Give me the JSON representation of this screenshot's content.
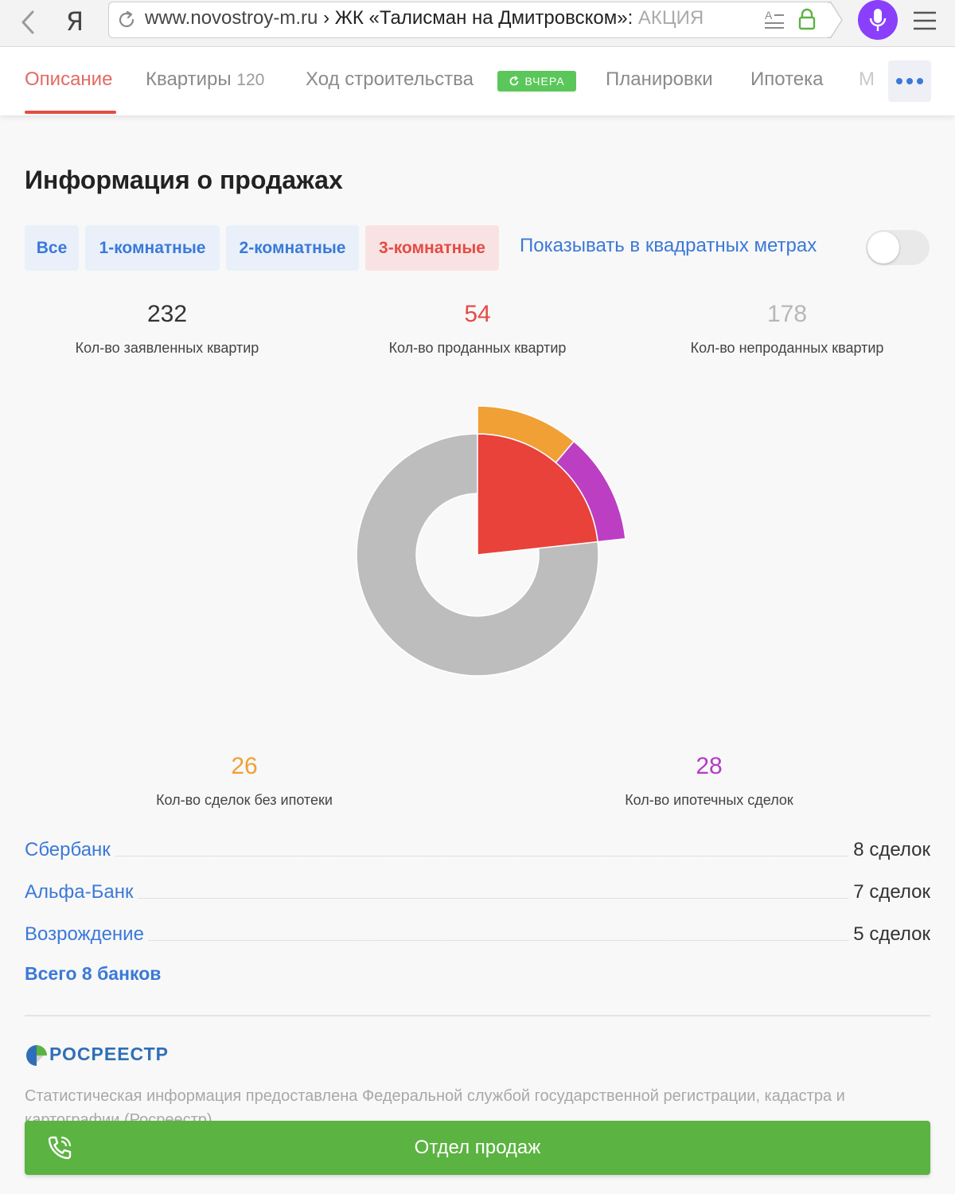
{
  "browser": {
    "url_host": "www.novostroy-m.ru",
    "url_sep": "›",
    "url_title": "ЖК «Талисман на Дмитровском»: ",
    "url_faded": "АКЦИЯ",
    "ya_label": "Я"
  },
  "tabs": {
    "description": "Описание",
    "apartments": "Квартиры",
    "apartments_count": "120",
    "construction": "Ход строительства",
    "construction_badge": "ВЧЕРА",
    "layouts": "Планировки",
    "mortgage": "Ипотека",
    "more_cut": "М"
  },
  "sales": {
    "title": "Информация о продажах",
    "filters": [
      "Все",
      "1-комнатные",
      "2-комнатные",
      "3-комнатные"
    ],
    "sqm_label": "Показывать в квадратных метрах",
    "declared_value": "232",
    "declared_label": "Кол-во заявленных квартир",
    "sold_value": "54",
    "sold_label": "Кол-во проданных квартир",
    "unsold_value": "178",
    "unsold_label": "Кол-во непроданных квартир",
    "cash_value": "26",
    "cash_label": "Кол-во сделок без ипотеки",
    "mortgage_value": "28",
    "mortgage_label": "Кол-во ипотечных сделок"
  },
  "chart_data": {
    "type": "pie",
    "inner": [
      {
        "name": "sold",
        "value": 54,
        "color": "#e8423b"
      },
      {
        "name": "unsold",
        "value": 178,
        "color": "#bdbdbd"
      }
    ],
    "outer": [
      {
        "name": "cash",
        "value": 26,
        "color": "#f0a035"
      },
      {
        "name": "mortgage",
        "value": 28,
        "color": "#bc3fc3"
      }
    ]
  },
  "banks": [
    {
      "name": "Сбербанк",
      "deals": "8 сделок"
    },
    {
      "name": "Альфа-Банк",
      "deals": "7 сделок"
    },
    {
      "name": "Возрождение",
      "deals": "5 сделок"
    }
  ],
  "total_banks": "Всего 8 банков",
  "rosreestr": {
    "name": "РОСРЕЕСТР",
    "text": "Статистическая информация предоставлена Федеральной службой государственной регистрации, кадастра и картографии (Росреестр)"
  },
  "sales_button": "Отдел продаж",
  "colors": {
    "accent_blue": "#3b79d8",
    "accent_red": "#e44c45",
    "button_green": "#5bb341",
    "mic_purple": "#8a3ffc"
  }
}
